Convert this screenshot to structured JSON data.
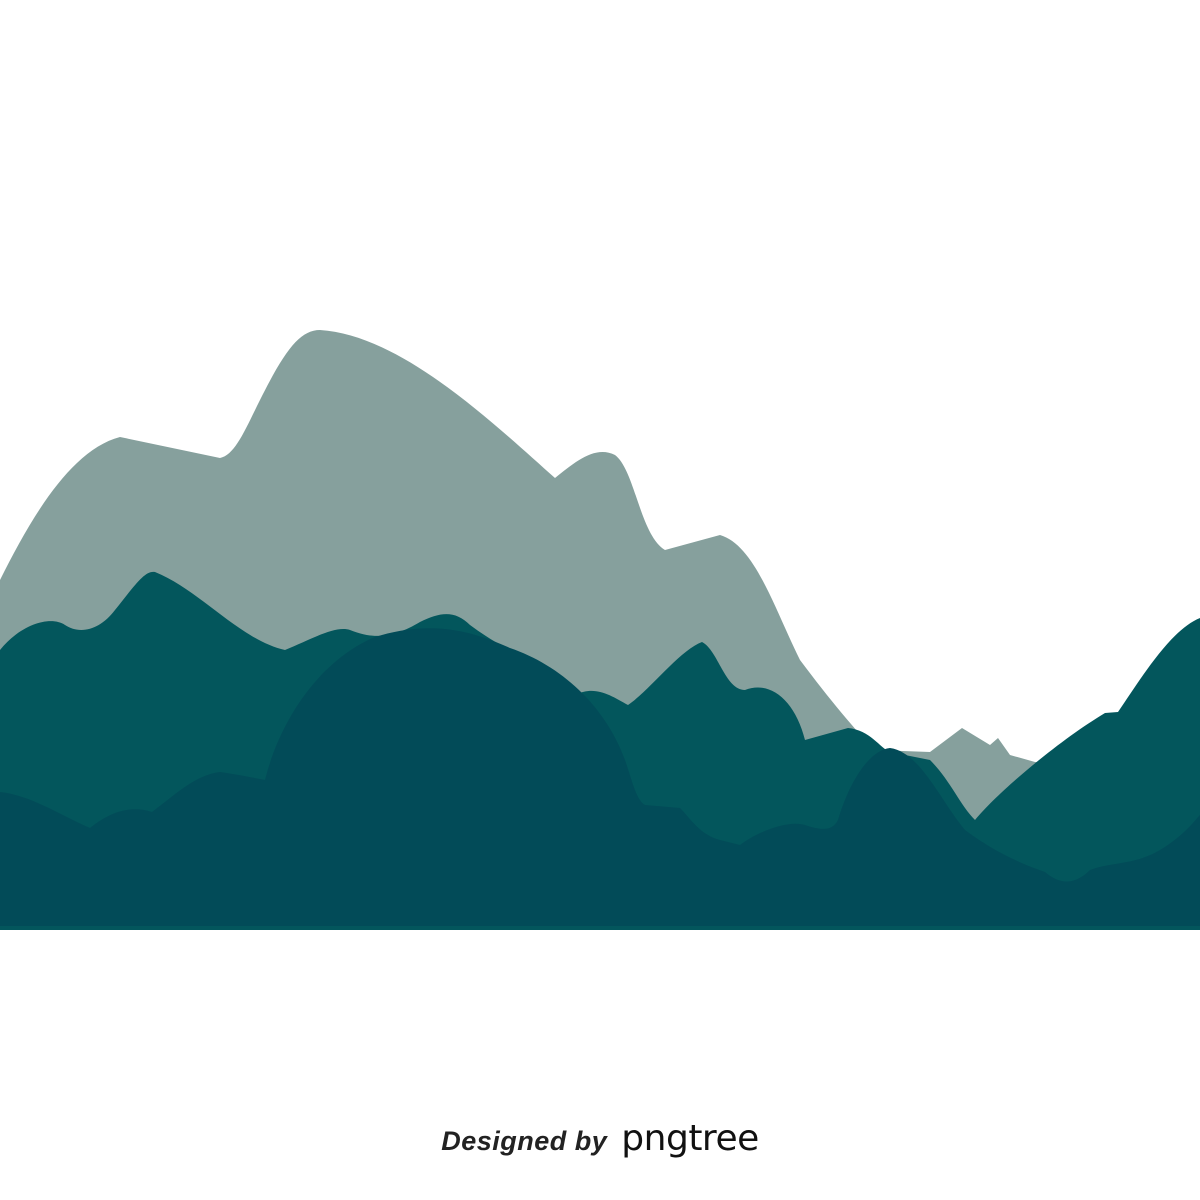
{
  "scene": {
    "subject": "layered-mountain-silhouette",
    "colors": {
      "background": "#ffffff",
      "far_range": "#86a09d",
      "middle_range": "#03565c",
      "near_range": "#024b58"
    }
  },
  "watermark": {
    "prefix": "Designed by",
    "brand": "pngtree"
  }
}
